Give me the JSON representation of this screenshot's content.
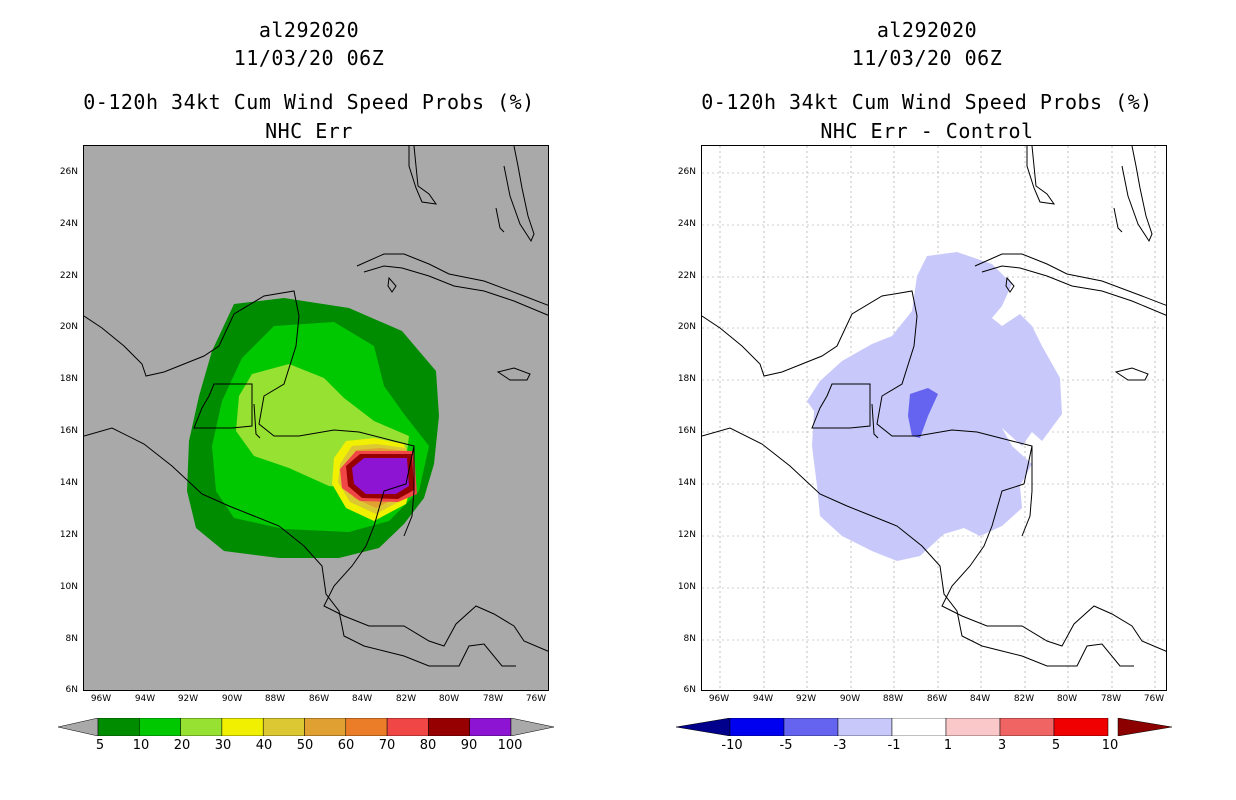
{
  "left_panel": {
    "storm_id": "al292020",
    "datetime": "11/03/20 06Z",
    "product": "0-120h 34kt Cum Wind Speed Probs (%)",
    "subtitle": "NHC Err",
    "background_color": "#a9a9a9",
    "colorbar": {
      "labels": [
        "5",
        "10",
        "20",
        "30",
        "40",
        "50",
        "60",
        "70",
        "80",
        "90",
        "100"
      ],
      "colors": [
        "#008c00",
        "#00c800",
        "#96e132",
        "#f0f000",
        "#dcc832",
        "#e1a032",
        "#eb7d28",
        "#f04646",
        "#960000",
        "#8c14d2"
      ]
    }
  },
  "right_panel": {
    "storm_id": "al292020",
    "datetime": "11/03/20 06Z",
    "product": "0-120h 34kt Cum Wind Speed Probs (%)",
    "subtitle": "NHC Err - Control",
    "background_color": "#ffffff",
    "colorbar": {
      "labels": [
        "-10",
        "-5",
        "-3",
        "-1",
        "1",
        "3",
        "5",
        "10"
      ],
      "colors": [
        "#00008c",
        "#0000f0",
        "#6464f0",
        "#c8c8fa",
        "#ffffff",
        "#fac8c8",
        "#f06464",
        "#f00000",
        "#8c0000"
      ]
    }
  },
  "axes": {
    "lat_labels": [
      "26N",
      "24N",
      "22N",
      "20N",
      "18N",
      "16N",
      "14N",
      "12N",
      "10N",
      "8N",
      "6N"
    ],
    "lon_labels": [
      "96W",
      "94W",
      "92W",
      "90W",
      "88W",
      "86W",
      "84W",
      "82W",
      "80W",
      "78W",
      "76W"
    ]
  }
}
